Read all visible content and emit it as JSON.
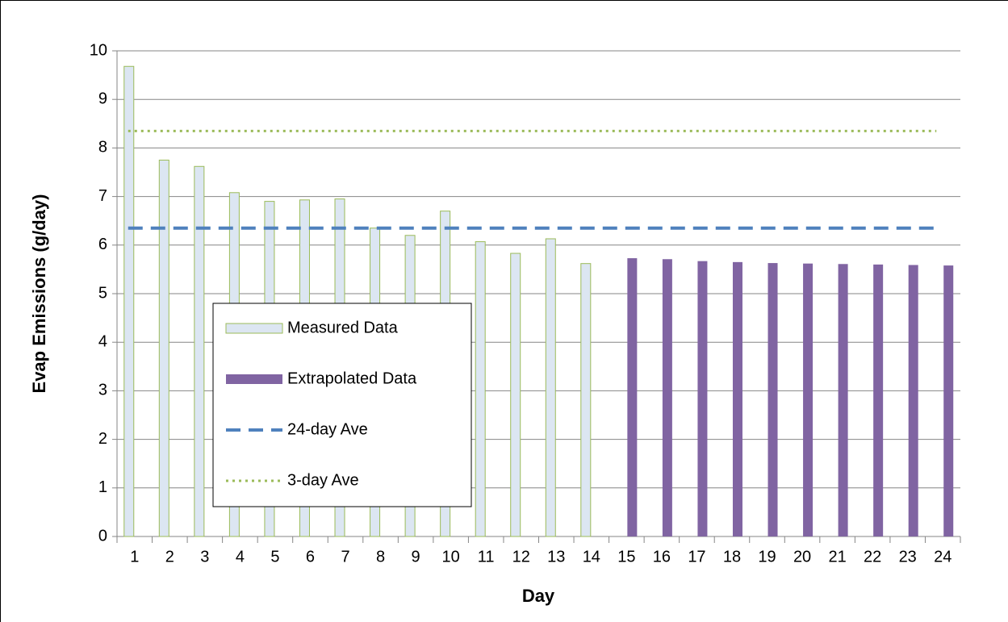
{
  "chart_data": {
    "type": "bar",
    "x_label": "Day",
    "y_label": "Evap Emissions (g/day)",
    "categories": [
      "1",
      "2",
      "3",
      "4",
      "5",
      "6",
      "7",
      "8",
      "9",
      "10",
      "11",
      "12",
      "13",
      "14",
      "15",
      "16",
      "17",
      "18",
      "19",
      "20",
      "21",
      "22",
      "23",
      "24"
    ],
    "series": [
      {
        "name": "Measured Data",
        "type": "bar",
        "color": "#dce6f2",
        "stroke": "#9bbb59",
        "values": [
          9.68,
          7.75,
          7.62,
          7.08,
          6.9,
          6.93,
          6.95,
          6.35,
          6.2,
          6.7,
          6.07,
          5.83,
          6.13,
          5.62,
          null,
          null,
          null,
          null,
          null,
          null,
          null,
          null,
          null,
          null
        ]
      },
      {
        "name": "Extrapolated Data",
        "type": "bar",
        "color": "#8064a2",
        "values": [
          null,
          null,
          null,
          null,
          null,
          null,
          null,
          null,
          null,
          null,
          null,
          null,
          null,
          null,
          5.73,
          5.71,
          5.67,
          5.65,
          5.63,
          5.62,
          5.61,
          5.6,
          5.59,
          5.58
        ]
      },
      {
        "name": "24-day Ave",
        "type": "line",
        "color": "#4f81bd",
        "dash": "dashed",
        "values": [
          6.35,
          6.35,
          6.35,
          6.35,
          6.35,
          6.35,
          6.35,
          6.35,
          6.35,
          6.35,
          6.35,
          6.35,
          6.35,
          6.35,
          6.35,
          6.35,
          6.35,
          6.35,
          6.35,
          6.35,
          6.35,
          6.35,
          6.35,
          6.35
        ]
      },
      {
        "name": "3-day Ave",
        "type": "line",
        "color": "#9bbb59",
        "dash": "dotted",
        "values": [
          8.35,
          8.35,
          8.35,
          8.35,
          8.35,
          8.35,
          8.35,
          8.35,
          8.35,
          8.35,
          8.35,
          8.35,
          8.35,
          8.35,
          8.35,
          8.35,
          8.35,
          8.35,
          8.35,
          8.35,
          8.35,
          8.35,
          8.35,
          8.35
        ]
      }
    ],
    "ylim": [
      0,
      10
    ],
    "yticks": [
      0,
      1,
      2,
      3,
      4,
      5,
      6,
      7,
      8,
      9,
      10
    ],
    "grid": true,
    "legend": "inside"
  }
}
